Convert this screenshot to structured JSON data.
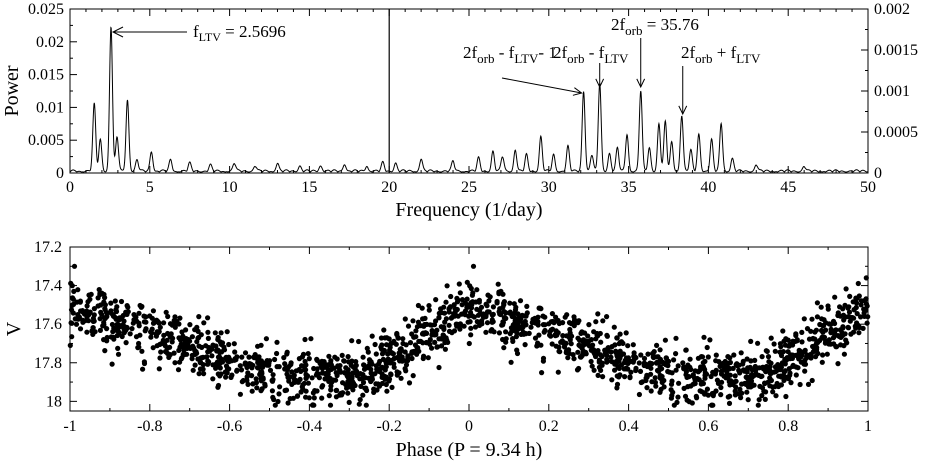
{
  "chart_data": [
    {
      "type": "line",
      "id": "periodogram",
      "xlabel": "Frequency (1/day)",
      "ylabel": "Power",
      "xlim": [
        0,
        50
      ],
      "ylim": [
        0,
        0.025
      ],
      "ylim_right": [
        0,
        0.002
      ],
      "x_ticks": [
        "0",
        "5",
        "10",
        "15",
        "20",
        "25",
        "30",
        "35",
        "40",
        "45",
        "50"
      ],
      "y_ticks": [
        "0",
        "0.005",
        "0.01",
        "0.015",
        "0.02",
        "0.025"
      ],
      "y_ticks_right": [
        "0",
        "0.0005",
        "0.001",
        "0.0015",
        "0.002"
      ],
      "divider_x": 20,
      "left_panel_note": "0-20 1/day uses left axis; 20-50 1/day uses right axis",
      "peaks_left": [
        {
          "f": 1.52,
          "p": 0.0102
        },
        {
          "f": 1.9,
          "p": 0.0048
        },
        {
          "f": 2.5696,
          "p": 0.0221
        },
        {
          "f": 2.95,
          "p": 0.0052
        },
        {
          "f": 3.6,
          "p": 0.0109
        },
        {
          "f": 4.2,
          "p": 0.0017
        },
        {
          "f": 5.1,
          "p": 0.003
        },
        {
          "f": 6.3,
          "p": 0.0017
        },
        {
          "f": 7.5,
          "p": 0.0012
        },
        {
          "f": 8.8,
          "p": 0.0009
        },
        {
          "f": 10.3,
          "p": 0.0012
        },
        {
          "f": 11.6,
          "p": 0.0008
        },
        {
          "f": 13.0,
          "p": 0.0012
        },
        {
          "f": 14.4,
          "p": 0.0008
        },
        {
          "f": 15.7,
          "p": 0.0009
        },
        {
          "f": 17.2,
          "p": 0.0011
        },
        {
          "f": 18.6,
          "p": 0.0008
        },
        {
          "f": 19.6,
          "p": 0.0013
        }
      ],
      "peaks_right": [
        {
          "f": 20.4,
          "p": 0.0001
        },
        {
          "f": 22.0,
          "p": 0.00015
        },
        {
          "f": 24.0,
          "p": 0.00012
        },
        {
          "f": 25.6,
          "p": 0.00016
        },
        {
          "f": 26.5,
          "p": 0.00024
        },
        {
          "f": 27.1,
          "p": 0.00018
        },
        {
          "f": 27.9,
          "p": 0.00026
        },
        {
          "f": 28.6,
          "p": 0.0002
        },
        {
          "f": 29.5,
          "p": 0.00042
        },
        {
          "f": 30.3,
          "p": 0.0002
        },
        {
          "f": 31.2,
          "p": 0.0003
        },
        {
          "f": 32.18,
          "p": 0.00098
        },
        {
          "f": 32.7,
          "p": 0.0002
        },
        {
          "f": 33.19,
          "p": 0.00107
        },
        {
          "f": 33.8,
          "p": 0.00022
        },
        {
          "f": 34.3,
          "p": 0.00028
        },
        {
          "f": 34.9,
          "p": 0.00045
        },
        {
          "f": 35.76,
          "p": 0.00098
        },
        {
          "f": 36.3,
          "p": 0.00028
        },
        {
          "f": 36.9,
          "p": 0.00058
        },
        {
          "f": 37.3,
          "p": 0.0006
        },
        {
          "f": 37.7,
          "p": 0.00035
        },
        {
          "f": 38.33,
          "p": 0.00068
        },
        {
          "f": 38.9,
          "p": 0.00025
        },
        {
          "f": 39.4,
          "p": 0.00045
        },
        {
          "f": 40.2,
          "p": 0.00038
        },
        {
          "f": 40.8,
          "p": 0.00058
        },
        {
          "f": 41.5,
          "p": 0.00015
        },
        {
          "f": 43.0,
          "p": 8e-05
        },
        {
          "f": 46.0,
          "p": 6e-05
        }
      ],
      "annotations": {
        "ltv": {
          "base": "f",
          "sub": "LTV",
          "value": " = 2.5696",
          "target_f": 2.5696
        },
        "a1": {
          "parts": [
            "2f",
            "orb",
            " - f",
            "LTV",
            "- 1"
          ],
          "target_f": 32.18
        },
        "a2": {
          "parts": [
            "2f",
            "orb",
            " - f",
            "LTV"
          ],
          "target_f": 33.19
        },
        "a3": {
          "parts": [
            "2f",
            "orb",
            " = 35.76"
          ],
          "target_f": 35.76
        },
        "a4": {
          "parts": [
            "2f",
            "orb",
            " + f",
            "LTV"
          ],
          "target_f": 38.33
        }
      }
    },
    {
      "type": "scatter",
      "id": "lightcurve",
      "xlabel": "Phase (P = 9.34 h)",
      "ylabel": "V",
      "xlim": [
        -1,
        1
      ],
      "ylim": [
        18.05,
        17.2
      ],
      "x_ticks": [
        "-1",
        "-0.8",
        "-0.6",
        "-0.4",
        "-0.2",
        "0",
        "0.2",
        "0.4",
        "0.6",
        "0.8",
        "1"
      ],
      "y_ticks": [
        "17.2",
        "17.4",
        "17.6",
        "17.8",
        "18"
      ],
      "y_tick_values": [
        17.2,
        17.4,
        17.6,
        17.8,
        18.0
      ],
      "mean_profile": [
        {
          "phase": 0.0,
          "v": 17.52
        },
        {
          "phase": 0.05,
          "v": 17.53
        },
        {
          "phase": 0.1,
          "v": 17.58
        },
        {
          "phase": 0.15,
          "v": 17.6
        },
        {
          "phase": 0.2,
          "v": 17.63
        },
        {
          "phase": 0.3,
          "v": 17.7
        },
        {
          "phase": 0.4,
          "v": 17.78
        },
        {
          "phase": 0.5,
          "v": 17.86
        },
        {
          "phase": 0.6,
          "v": 17.88
        },
        {
          "phase": 0.7,
          "v": 17.88
        },
        {
          "phase": 0.78,
          "v": 17.82
        },
        {
          "phase": 0.85,
          "v": 17.72
        },
        {
          "phase": 0.92,
          "v": 17.62
        },
        {
          "phase": 1.0,
          "v": 17.52
        }
      ],
      "scatter_sigma_mag": 0.07,
      "points_per_cycle": 900
    }
  ]
}
